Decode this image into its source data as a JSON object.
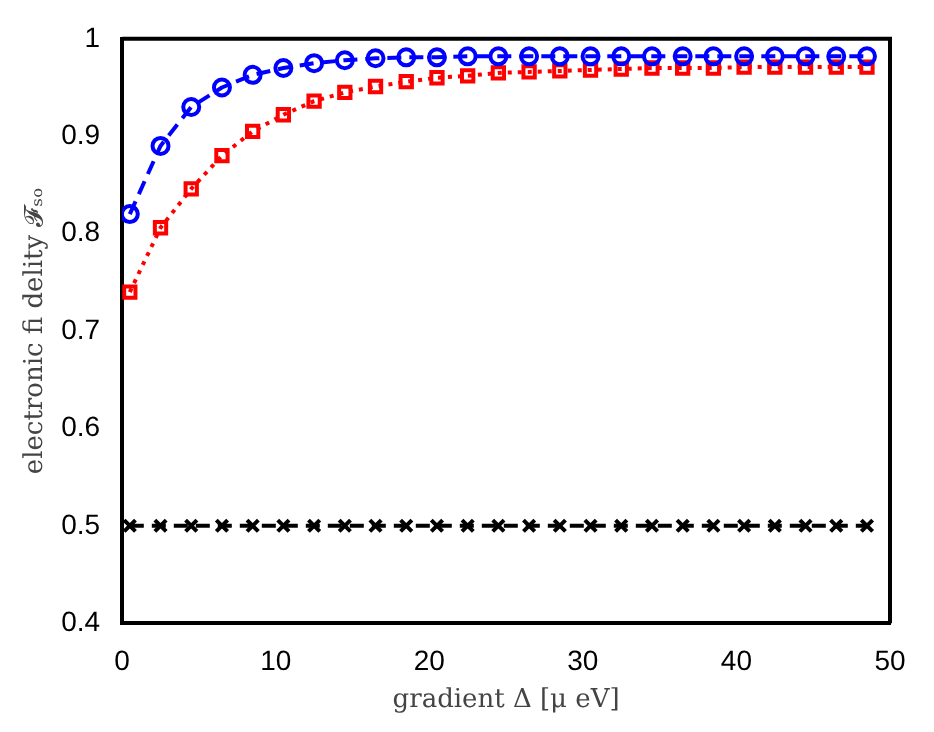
{
  "chart_data": {
    "type": "line",
    "xlabel": "gradient Δ [μ eV]",
    "ylabel": "electronic fi delity 𝓕ₛₒ",
    "x": [
      0.5,
      2.5,
      4.5,
      6.5,
      8.5,
      10.5,
      12.5,
      14.5,
      16.5,
      18.5,
      20.5,
      22.5,
      24.5,
      26.5,
      28.5,
      30.5,
      32.5,
      34.5,
      36.5,
      38.5,
      40.5,
      42.5,
      44.5,
      46.5,
      48.5
    ],
    "series": [
      {
        "color": "#0000ff",
        "marker": "circle",
        "line_style": "dashed",
        "values": [
          0.82,
          0.89,
          0.93,
          0.95,
          0.963,
          0.97,
          0.975,
          0.978,
          0.98,
          0.981,
          0.981,
          0.982,
          0.982,
          0.982,
          0.982,
          0.982,
          0.982,
          0.982,
          0.982,
          0.982,
          0.982,
          0.982,
          0.982,
          0.982,
          0.982
        ]
      },
      {
        "color": "#ff0000",
        "marker": "square",
        "line_style": "dotted",
        "values": [
          0.74,
          0.806,
          0.846,
          0.88,
          0.905,
          0.922,
          0.936,
          0.945,
          0.951,
          0.956,
          0.96,
          0.962,
          0.965,
          0.966,
          0.967,
          0.968,
          0.969,
          0.97,
          0.97,
          0.97,
          0.971,
          0.971,
          0.971,
          0.971,
          0.971
        ]
      },
      {
        "color": "#000000",
        "marker": "cross",
        "line_style": "dashed",
        "values": [
          0.5,
          0.5,
          0.5,
          0.5,
          0.5,
          0.5,
          0.5,
          0.5,
          0.5,
          0.5,
          0.5,
          0.5,
          0.5,
          0.5,
          0.5,
          0.5,
          0.5,
          0.5,
          0.5,
          0.5,
          0.5,
          0.5,
          0.5,
          0.5,
          0.5
        ]
      }
    ],
    "xlim": [
      0,
      50
    ],
    "xticks": [
      0,
      10,
      20,
      30,
      40,
      50
    ],
    "ylim": [
      0.4,
      1
    ],
    "yticks": [
      0.4,
      0.5,
      0.6,
      0.7,
      0.8,
      0.9,
      1
    ],
    "grid": false,
    "legend": false
  }
}
